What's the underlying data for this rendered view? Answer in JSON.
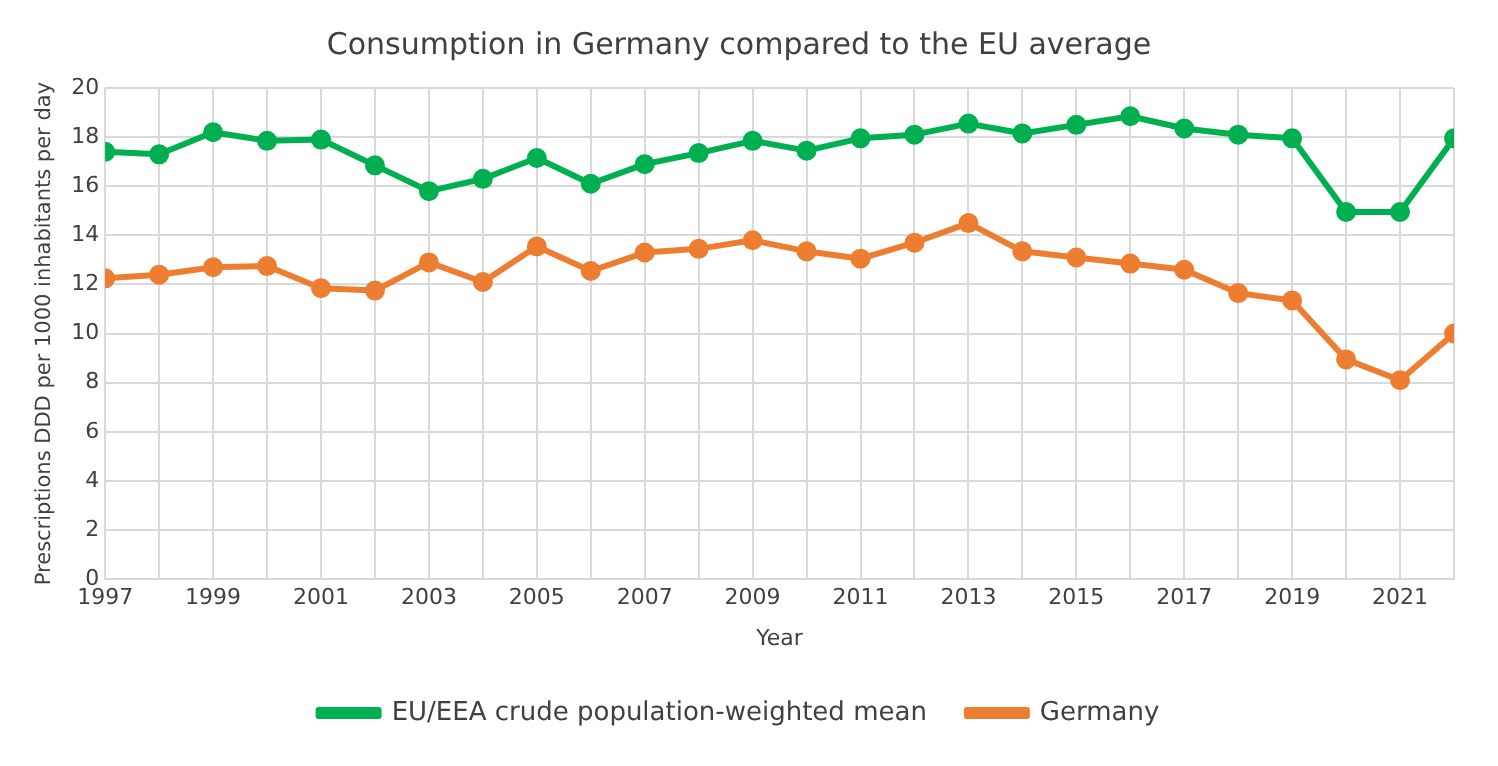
{
  "chart_data": {
    "type": "line",
    "title": "Consumption in Germany compared to the EU average",
    "xlabel": "Year",
    "ylabel": "Prescriptions DDD per 1000 inhabitants per day",
    "x": [
      1997,
      1998,
      1999,
      2000,
      2001,
      2002,
      2003,
      2004,
      2005,
      2006,
      2007,
      2008,
      2009,
      2010,
      2011,
      2012,
      2013,
      2014,
      2015,
      2016,
      2017,
      2018,
      2019,
      2020,
      2021,
      2022
    ],
    "series": [
      {
        "name": "EU/EEA crude population-weighted mean",
        "color": "#00b050",
        "values": [
          17.4,
          17.3,
          18.2,
          17.85,
          17.9,
          16.85,
          15.8,
          16.3,
          17.15,
          16.1,
          16.9,
          17.35,
          17.85,
          17.45,
          17.95,
          18.1,
          18.55,
          18.15,
          18.5,
          18.85,
          18.35,
          18.1,
          17.95,
          14.95,
          14.95,
          17.95
        ]
      },
      {
        "name": "Germany",
        "color": "#ed7d31",
        "values": [
          12.25,
          12.4,
          12.7,
          12.75,
          11.85,
          11.75,
          12.9,
          12.1,
          13.55,
          12.55,
          13.3,
          13.45,
          13.8,
          13.35,
          13.05,
          13.7,
          14.5,
          13.35,
          13.1,
          12.85,
          12.6,
          11.65,
          11.35,
          8.95,
          8.1,
          10.0
        ]
      }
    ],
    "xlim": [
      1997,
      2022
    ],
    "xticks": [
      1997,
      {
        "value": 1998,
        "label": null
      },
      1999,
      {
        "value": 2000,
        "label": null
      },
      2001,
      {
        "value": 2002,
        "label": null
      },
      2003,
      {
        "value": 2004,
        "label": null
      },
      2005,
      {
        "value": 2006,
        "label": null
      },
      2007,
      {
        "value": 2008,
        "label": null
      },
      2009,
      {
        "value": 2010,
        "label": null
      },
      2011,
      {
        "value": 2012,
        "label": null
      },
      2013,
      {
        "value": 2014,
        "label": null
      },
      2015,
      {
        "value": 2016,
        "label": null
      },
      2017,
      {
        "value": 2018,
        "label": null
      },
      2019,
      {
        "value": 2020,
        "label": null
      },
      2021,
      {
        "value": 2022,
        "label": null
      }
    ],
    "ylim": [
      0,
      20
    ],
    "yticks": [
      0,
      2,
      4,
      6,
      8,
      10,
      12,
      14,
      16,
      18,
      20
    ],
    "grid": true,
    "legend": "bottom",
    "marker": "circle",
    "line_style": "solid"
  }
}
